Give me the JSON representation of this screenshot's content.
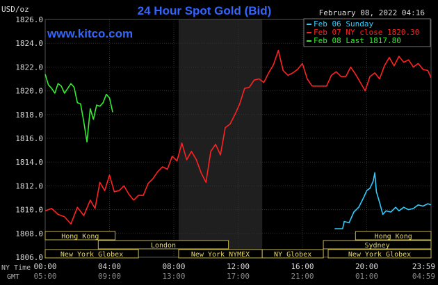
{
  "header": {
    "unit": "USD/oz",
    "title": "24 Hour Spot Gold (Bid)",
    "timestamp": "February 08, 2022 04:16",
    "watermark": "www.kitco.com"
  },
  "legend": [
    {
      "label": "Feb 06 Sunday",
      "color": "#33ccff"
    },
    {
      "label": "Feb 07 NY close 1820.30",
      "color": "#ff2222"
    },
    {
      "label": "Feb 08 Last 1817.80",
      "color": "#33ee33"
    }
  ],
  "footer": {
    "ny_time_label": "NY Time",
    "gmt_label": "GMT"
  },
  "sessions": {
    "row1": [
      {
        "label": "Hong Kong",
        "start": 0,
        "end": 4.35
      },
      {
        "label": "Hong Kong",
        "start": 19.3,
        "end": 24
      }
    ],
    "row2": [
      {
        "label": "London",
        "start": 3.3,
        "end": 11.4
      },
      {
        "label": "Sydney",
        "start": 17.3,
        "end": 24
      }
    ],
    "row3": [
      {
        "label": "New York Globex",
        "start": 0,
        "end": 5.8
      },
      {
        "label": "New York NYMEX",
        "start": 8.3,
        "end": 13.5
      },
      {
        "label": "NY Globex",
        "start": 13.5,
        "end": 17.3
      },
      {
        "label": "New York Globex",
        "start": 17.6,
        "end": 24
      }
    ]
  },
  "chart_data": {
    "type": "line",
    "title": "24 Hour Spot Gold (Bid)",
    "ylabel": "USD/oz",
    "ylim": [
      1806,
      1826
    ],
    "yticks": [
      "1806.0",
      "1808.0",
      "1810.0",
      "1812.0",
      "1814.0",
      "1816.0",
      "1818.0",
      "1820.0",
      "1822.0",
      "1824.0",
      "1826.0"
    ],
    "xlim": [
      0,
      24
    ],
    "ny_ticks": [
      "00:00",
      "04:00",
      "08:00",
      "12:00",
      "16:00",
      "20:00",
      "23:59"
    ],
    "gmt_ticks": [
      "05:00",
      "09:00",
      "13:00",
      "17:00",
      "21:00",
      "01:00",
      "04:59"
    ],
    "grid": true,
    "shaded_region": [
      8.3,
      13.5
    ],
    "series": [
      {
        "name": "Feb 06 Sunday",
        "color": "#33ccff",
        "x": [
          18.0,
          18.5,
          18.6,
          18.9,
          19.2,
          19.5,
          19.8,
          20.0,
          20.2,
          20.4,
          20.5,
          20.6,
          20.8,
          21.0,
          21.2,
          21.5,
          21.8,
          22.0,
          22.3,
          22.6,
          22.9,
          23.2,
          23.5,
          23.8,
          24.0
        ],
        "y": [
          1808.4,
          1808.4,
          1809.0,
          1808.9,
          1809.8,
          1810.2,
          1811.0,
          1811.6,
          1811.8,
          1812.4,
          1813.1,
          1811.5,
          1810.6,
          1809.6,
          1809.9,
          1809.8,
          1810.2,
          1809.9,
          1810.2,
          1810.0,
          1810.1,
          1810.4,
          1810.3,
          1810.5,
          1810.4
        ]
      },
      {
        "name": "Feb 07 NY close 1820.30",
        "color": "#ff2222",
        "x": [
          0.0,
          0.4,
          0.8,
          1.2,
          1.6,
          2.0,
          2.4,
          2.8,
          3.1,
          3.4,
          3.7,
          4.0,
          4.3,
          4.6,
          4.9,
          5.2,
          5.5,
          5.8,
          6.1,
          6.4,
          6.7,
          7.0,
          7.3,
          7.6,
          7.9,
          8.2,
          8.5,
          8.8,
          9.1,
          9.4,
          9.7,
          10.0,
          10.3,
          10.6,
          10.9,
          11.2,
          11.5,
          11.8,
          12.1,
          12.4,
          12.7,
          13.0,
          13.3,
          13.6,
          13.9,
          14.2,
          14.5,
          14.8,
          15.1,
          15.4,
          15.7,
          16.0,
          16.3,
          16.6,
          16.9,
          17.2,
          17.5,
          17.8,
          18.1,
          18.4,
          18.7,
          19.0,
          19.3,
          19.6,
          19.9,
          20.2,
          20.5,
          20.8,
          21.1,
          21.4,
          21.7,
          22.0,
          22.3,
          22.6,
          22.9,
          23.2,
          23.5,
          23.8,
          24.0
        ],
        "y": [
          1809.9,
          1810.1,
          1809.6,
          1809.4,
          1808.8,
          1810.2,
          1809.5,
          1810.8,
          1810.1,
          1812.3,
          1811.6,
          1812.9,
          1811.5,
          1811.6,
          1812.0,
          1811.3,
          1810.8,
          1811.2,
          1811.2,
          1812.2,
          1812.6,
          1813.2,
          1813.6,
          1813.4,
          1814.5,
          1814.1,
          1815.6,
          1814.2,
          1814.9,
          1814.2,
          1813.1,
          1812.3,
          1814.9,
          1815.5,
          1814.6,
          1816.9,
          1817.2,
          1818.0,
          1818.9,
          1820.2,
          1820.3,
          1820.9,
          1821.0,
          1820.7,
          1821.5,
          1822.2,
          1823.4,
          1821.7,
          1821.3,
          1821.5,
          1821.8,
          1822.3,
          1821.0,
          1820.4,
          1820.4,
          1820.4,
          1820.4,
          1821.3,
          1821.6,
          1821.2,
          1821.2,
          1822.0,
          1821.4,
          1820.7,
          1820.0,
          1821.2,
          1821.5,
          1821.0,
          1822.1,
          1822.8,
          1822.1,
          1822.9,
          1822.4,
          1822.6,
          1822.0,
          1822.3,
          1821.8,
          1821.7,
          1821.1
        ]
      },
      {
        "name": "Feb 08 Last 1817.80",
        "color": "#33ee33",
        "x": [
          0.0,
          0.2,
          0.4,
          0.6,
          0.8,
          1.0,
          1.2,
          1.4,
          1.6,
          1.8,
          2.0,
          2.2,
          2.4,
          2.6,
          2.8,
          3.0,
          3.2,
          3.4,
          3.6,
          3.8,
          4.0,
          4.2
        ],
        "y": [
          1821.4,
          1820.5,
          1820.2,
          1819.8,
          1820.6,
          1820.4,
          1819.8,
          1820.2,
          1820.6,
          1820.3,
          1819.0,
          1818.9,
          1817.4,
          1815.7,
          1818.5,
          1817.6,
          1818.8,
          1818.7,
          1819.0,
          1819.7,
          1819.4,
          1818.2
        ]
      }
    ]
  }
}
